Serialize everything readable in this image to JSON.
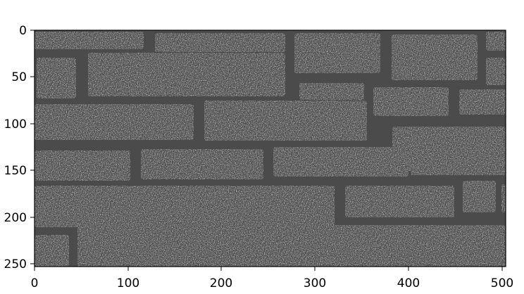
{
  "image": {
    "description_type": "grayscale photo of a white-painted brick wall with dark mortar, displayed with pixel-index axes",
    "colors": {
      "mortar": "#4a4a4a",
      "brick": "#e4e4e4",
      "background": "#ffffff"
    }
  },
  "axes": {
    "x_ticks": [
      "0",
      "100",
      "200",
      "300",
      "400",
      "500"
    ],
    "y_ticks": [
      "0",
      "50",
      "100",
      "150",
      "200",
      "250"
    ]
  }
}
